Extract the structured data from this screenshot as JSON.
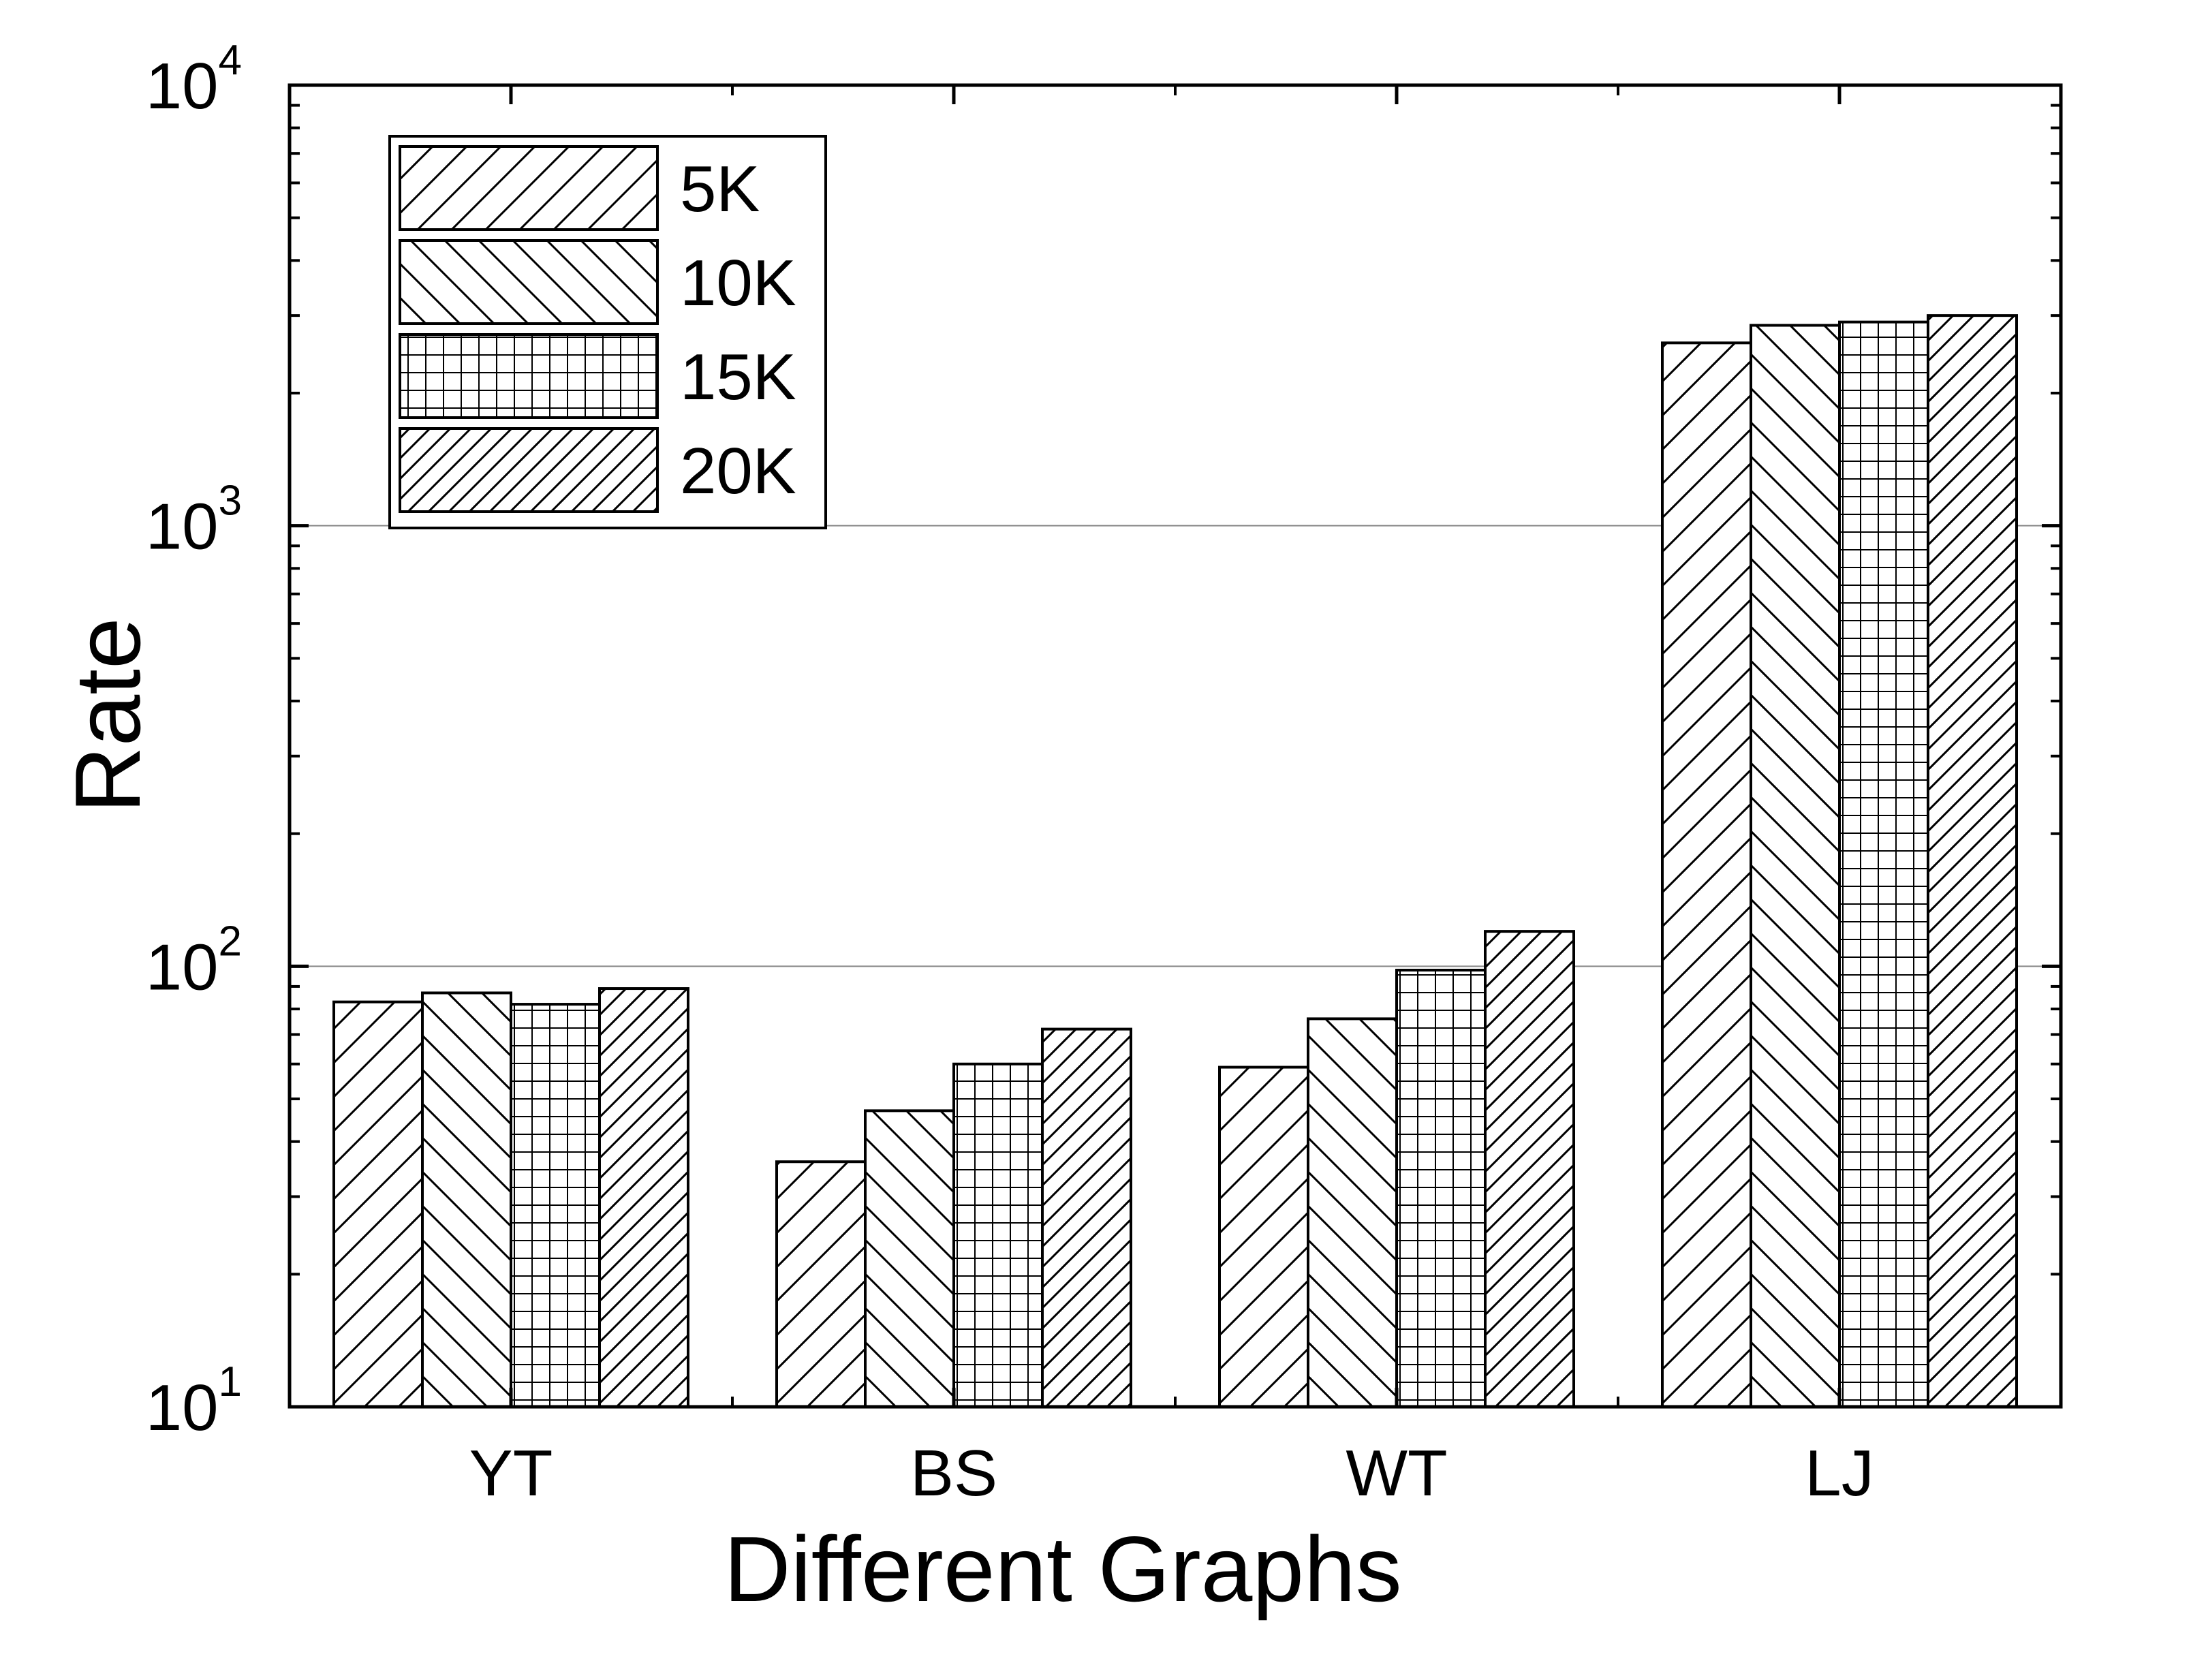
{
  "chart_data": {
    "type": "bar",
    "title": "",
    "xlabel": "Different Graphs",
    "ylabel": "Rate",
    "yscale": "log",
    "ylim": [
      10,
      10000
    ],
    "grid": true,
    "legend_position": "top-left",
    "categories": [
      "YT",
      "BS",
      "WT",
      "LJ"
    ],
    "yticks": [
      {
        "base": "10",
        "exp": "1",
        "value": 10
      },
      {
        "base": "10",
        "exp": "2",
        "value": 100
      },
      {
        "base": "10",
        "exp": "3",
        "value": 1000
      },
      {
        "base": "10",
        "exp": "4",
        "value": 10000
      }
    ],
    "series": [
      {
        "name": "5K",
        "pattern": "diagonal-forward",
        "values": [
          83,
          36,
          59,
          2600
        ]
      },
      {
        "name": "10K",
        "pattern": "diagonal-backward",
        "values": [
          87,
          47,
          76,
          2850
        ]
      },
      {
        "name": "15K",
        "pattern": "grid",
        "values": [
          82,
          60,
          98,
          2900
        ]
      },
      {
        "name": "20K",
        "pattern": "diagonal-forward-dense",
        "values": [
          89,
          72,
          120,
          3000
        ]
      }
    ],
    "colors": {
      "fill": "#ffffff",
      "stroke": "#000000",
      "grid": "#888888"
    }
  }
}
